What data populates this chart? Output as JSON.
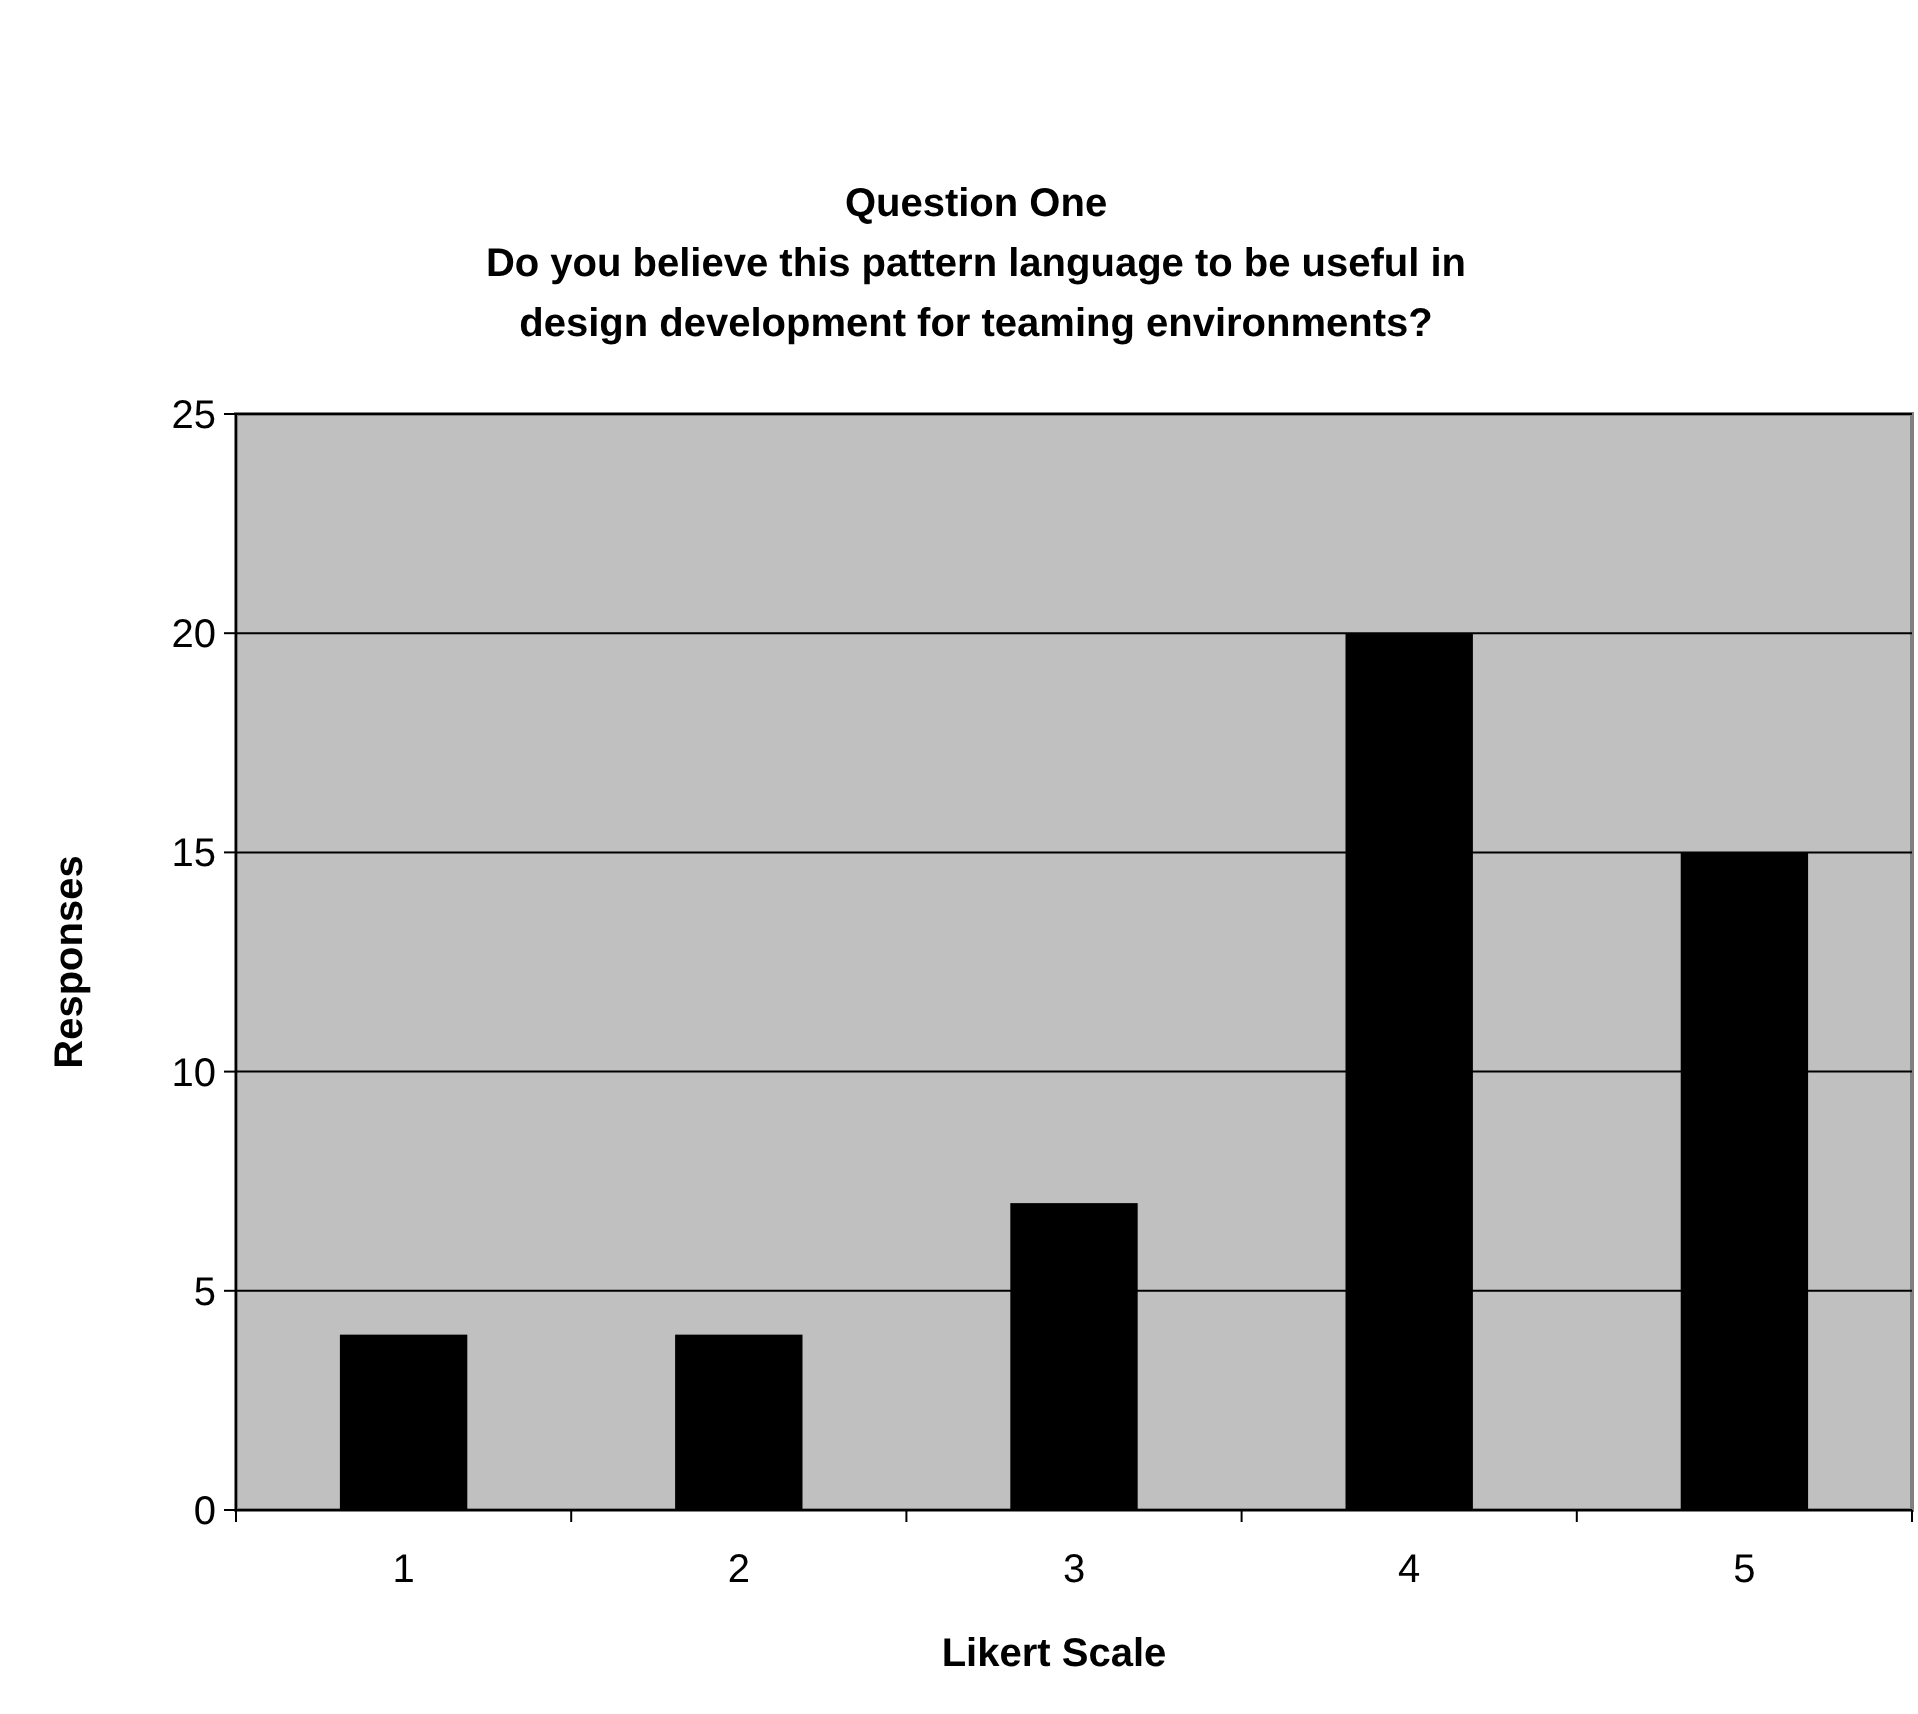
{
  "chart_data": {
    "type": "bar",
    "title": "Question One",
    "subtitle": "Do you believe this pattern language to be useful in design development for teaming environments?",
    "xlabel": "Likert Scale",
    "ylabel": "Responses",
    "categories": [
      "1",
      "2",
      "3",
      "4",
      "5"
    ],
    "values": [
      4,
      4,
      7,
      20,
      15
    ],
    "color": "#000000",
    "ylim": [
      0,
      25
    ],
    "yticks": [
      0,
      5,
      10,
      15,
      20,
      25
    ],
    "grid": "y"
  }
}
